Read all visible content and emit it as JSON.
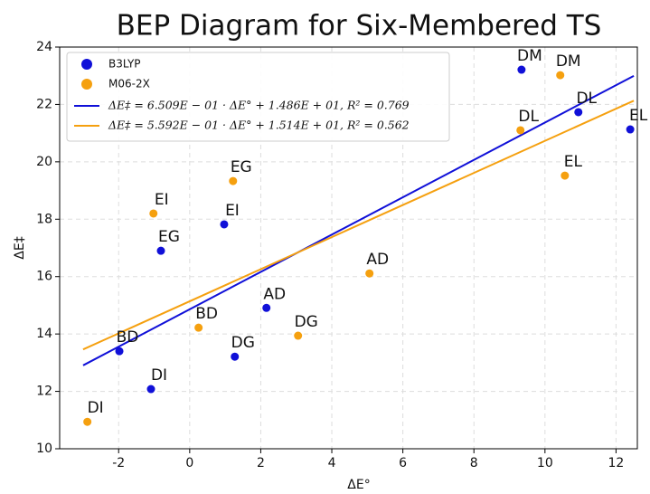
{
  "chart_data": {
    "type": "scatter",
    "title": "BEP Diagram for Six-Membered TS",
    "x_label": "ΔE°",
    "y_label": "ΔE‡",
    "xlim": [
      -3.66,
      12.6
    ],
    "ylim": [
      10,
      24
    ],
    "xticks": [
      -2,
      0,
      2,
      4,
      6,
      8,
      10,
      12
    ],
    "yticks": [
      10,
      12,
      14,
      16,
      18,
      20,
      22,
      24
    ],
    "grid": true,
    "legend": "upper left",
    "series": [
      {
        "name": "B3LYP",
        "color": "#1010d8",
        "labels": [
          "DM",
          "DL",
          "EL",
          "EG",
          "EI",
          "AD",
          "BD",
          "DG",
          "DI"
        ],
        "x": [
          9.34,
          10.94,
          12.4,
          -0.81,
          0.97,
          2.16,
          -1.98,
          1.27,
          -1.09
        ],
        "values": [
          23.21,
          21.73,
          21.13,
          16.9,
          17.82,
          14.91,
          13.4,
          13.21,
          12.08
        ]
      },
      {
        "name": "M06-2X",
        "color": "#f5a00f",
        "labels": [
          "DM",
          "DL",
          "EL",
          "EG",
          "EI",
          "AD",
          "DG",
          "BD",
          "DI"
        ],
        "x": [
          10.43,
          9.31,
          10.56,
          1.22,
          -1.02,
          5.06,
          3.05,
          0.25,
          -2.88
        ],
        "values": [
          23.02,
          21.1,
          19.52,
          19.33,
          18.2,
          16.11,
          13.94,
          14.22,
          10.94
        ]
      }
    ],
    "fits": [
      {
        "name": "ΔE‡ = 6.509E − 01 · ΔE° + 1.486E + 01,  R² = 0.769",
        "color": "#1010d8",
        "x": [
          -3,
          12.5
        ],
        "values": [
          12.907,
          22.996
        ]
      },
      {
        "name": "ΔE‡ = 5.592E − 01 · ΔE° + 1.514E + 01,  R² = 0.562",
        "color": "#f5a00f",
        "x": [
          -3,
          12.5
        ],
        "values": [
          13.462,
          22.13
        ]
      }
    ]
  }
}
